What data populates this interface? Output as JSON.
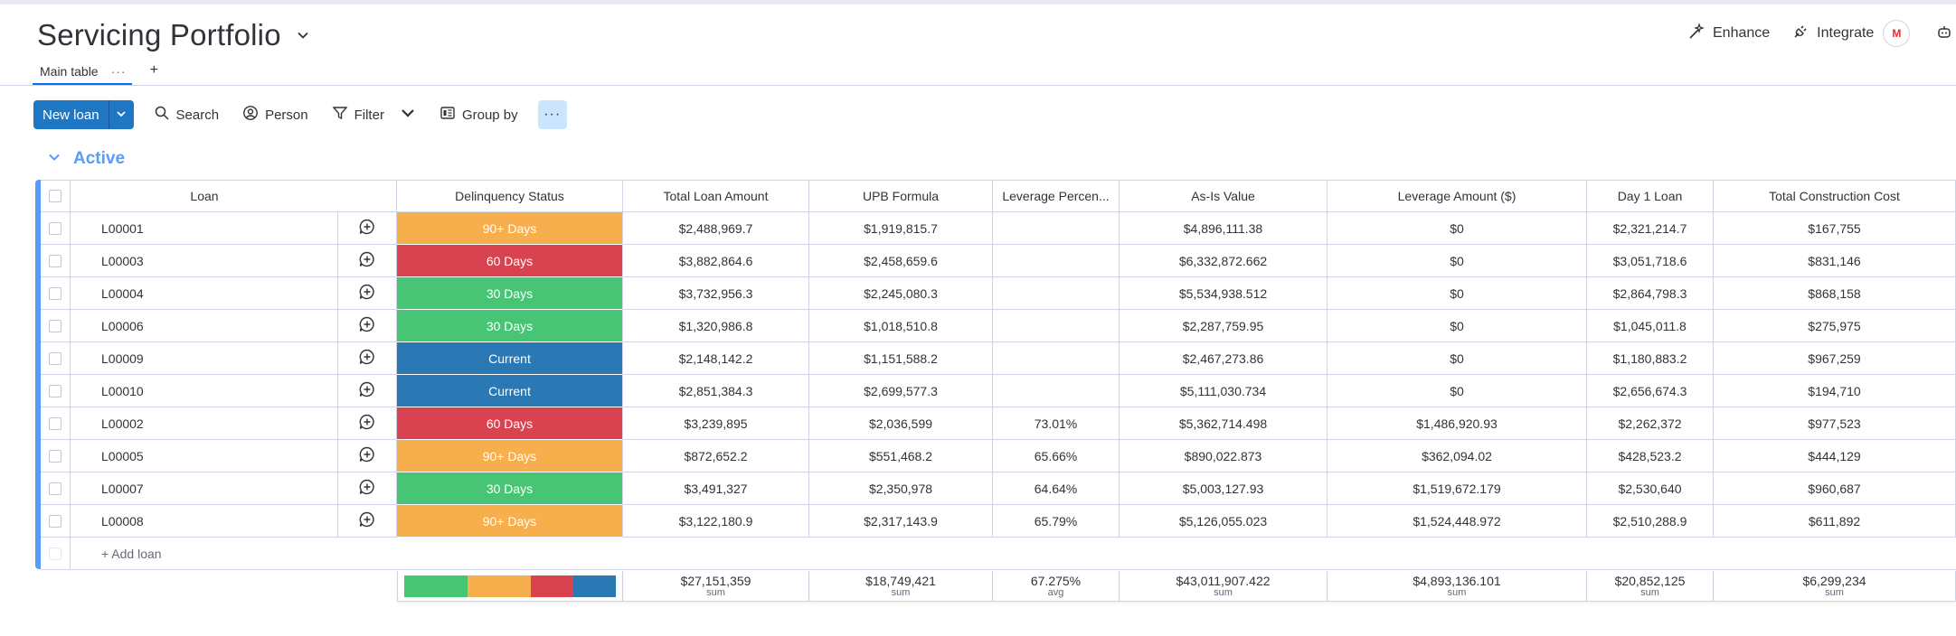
{
  "board": {
    "title": "Servicing Portfolio"
  },
  "header_actions": {
    "enhance": "Enhance",
    "integrate": "Integrate",
    "gmail_badge": "M",
    "automate": "Au"
  },
  "tabs": {
    "main": "Main table",
    "more": "···",
    "add": "+"
  },
  "toolbar": {
    "new_loan": "New loan",
    "search": "Search",
    "person": "Person",
    "filter": "Filter",
    "group_by": "Group by",
    "more": "···"
  },
  "group": {
    "title": "Active",
    "color": "#579bfc"
  },
  "columns": [
    "Loan",
    "Delinquency Status",
    "Total Loan Amount",
    "UPB Formula",
    "Leverage Percen...",
    "As-Is Value",
    "Leverage Amount ($)",
    "Day 1 Loan",
    "Total Construction Cost"
  ],
  "status_colors": {
    "90+ Days": "#f7ae4d",
    "60 Days": "#d8434f",
    "30 Days": "#47c574",
    "Current": "#2a79b5"
  },
  "rows": [
    {
      "loan": "L00001",
      "status": "90+ Days",
      "total": "$2,488,969.7",
      "upb": "$1,919,815.7",
      "lev_pct": "",
      "asis": "$4,896,111.38",
      "lev_amt": "$0",
      "day1": "$2,321,214.7",
      "constr": "$167,755"
    },
    {
      "loan": "L00003",
      "status": "60 Days",
      "total": "$3,882,864.6",
      "upb": "$2,458,659.6",
      "lev_pct": "",
      "asis": "$6,332,872.662",
      "lev_amt": "$0",
      "day1": "$3,051,718.6",
      "constr": "$831,146"
    },
    {
      "loan": "L00004",
      "status": "30 Days",
      "total": "$3,732,956.3",
      "upb": "$2,245,080.3",
      "lev_pct": "",
      "asis": "$5,534,938.512",
      "lev_amt": "$0",
      "day1": "$2,864,798.3",
      "constr": "$868,158"
    },
    {
      "loan": "L00006",
      "status": "30 Days",
      "total": "$1,320,986.8",
      "upb": "$1,018,510.8",
      "lev_pct": "",
      "asis": "$2,287,759.95",
      "lev_amt": "$0",
      "day1": "$1,045,011.8",
      "constr": "$275,975"
    },
    {
      "loan": "L00009",
      "status": "Current",
      "total": "$2,148,142.2",
      "upb": "$1,151,588.2",
      "lev_pct": "",
      "asis": "$2,467,273.86",
      "lev_amt": "$0",
      "day1": "$1,180,883.2",
      "constr": "$967,259"
    },
    {
      "loan": "L00010",
      "status": "Current",
      "total": "$2,851,384.3",
      "upb": "$2,699,577.3",
      "lev_pct": "",
      "asis": "$5,111,030.734",
      "lev_amt": "$0",
      "day1": "$2,656,674.3",
      "constr": "$194,710"
    },
    {
      "loan": "L00002",
      "status": "60 Days",
      "total": "$3,239,895",
      "upb": "$2,036,599",
      "lev_pct": "73.01%",
      "asis": "$5,362,714.498",
      "lev_amt": "$1,486,920.93",
      "day1": "$2,262,372",
      "constr": "$977,523"
    },
    {
      "loan": "L00005",
      "status": "90+ Days",
      "total": "$872,652.2",
      "upb": "$551,468.2",
      "lev_pct": "65.66%",
      "asis": "$890,022.873",
      "lev_amt": "$362,094.02",
      "day1": "$428,523.2",
      "constr": "$444,129"
    },
    {
      "loan": "L00007",
      "status": "30 Days",
      "total": "$3,491,327",
      "upb": "$2,350,978",
      "lev_pct": "64.64%",
      "asis": "$5,003,127.93",
      "lev_amt": "$1,519,672.179",
      "day1": "$2,530,640",
      "constr": "$960,687"
    },
    {
      "loan": "L00008",
      "status": "90+ Days",
      "total": "$3,122,180.9",
      "upb": "$2,317,143.9",
      "lev_pct": "65.79%",
      "asis": "$5,126,055.023",
      "lev_amt": "$1,524,448.972",
      "day1": "$2,510,288.9",
      "constr": "$611,892"
    }
  ],
  "add_row": "+ Add loan",
  "summary": {
    "status_distribution": [
      {
        "status": "30 Days",
        "fraction": 0.3
      },
      {
        "status": "90+ Days",
        "fraction": 0.3
      },
      {
        "status": "60 Days",
        "fraction": 0.2
      },
      {
        "status": "Current",
        "fraction": 0.2
      }
    ],
    "total": {
      "value": "$27,151,359",
      "label": "sum"
    },
    "upb": {
      "value": "$18,749,421",
      "label": "sum"
    },
    "lev_pct": {
      "value": "67.275%",
      "label": "avg"
    },
    "asis": {
      "value": "$43,011,907.422",
      "label": "sum"
    },
    "lev_amt": {
      "value": "$4,893,136.101",
      "label": "sum"
    },
    "day1": {
      "value": "$20,852,125",
      "label": "sum"
    },
    "constr": {
      "value": "$6,299,234",
      "label": "sum"
    }
  }
}
